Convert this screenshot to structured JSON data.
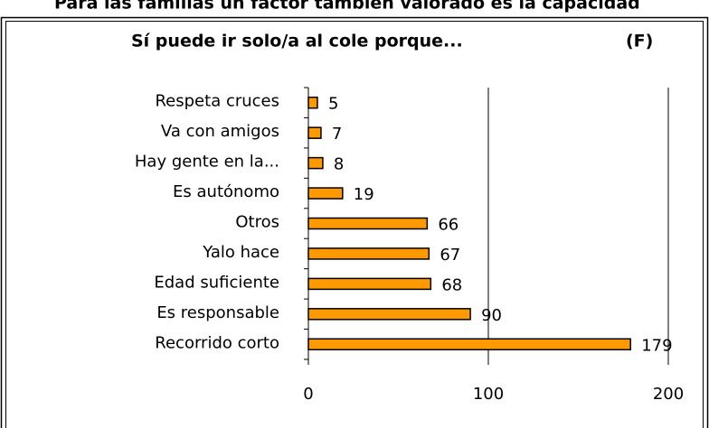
{
  "header": {
    "text": "Para las familias un factor también valorado es la capacidad"
  },
  "chart_data": {
    "type": "bar",
    "orientation": "horizontal",
    "title": "Sí puede ir solo/a al cole porque...",
    "subtitle": "(F)",
    "categories": [
      "Respeta cruces",
      "Va con amigos",
      "Hay gente en la...",
      "Es autónomo",
      "Otros",
      "Yalo hace",
      "Edad suficiente",
      "Es responsable",
      "Recorrido corto"
    ],
    "values": [
      5,
      7,
      8,
      19,
      66,
      67,
      68,
      90,
      179
    ],
    "color": "#ff9900",
    "xlim": [
      0,
      200
    ],
    "xticks": [
      0,
      100,
      200
    ],
    "grid": true
  }
}
